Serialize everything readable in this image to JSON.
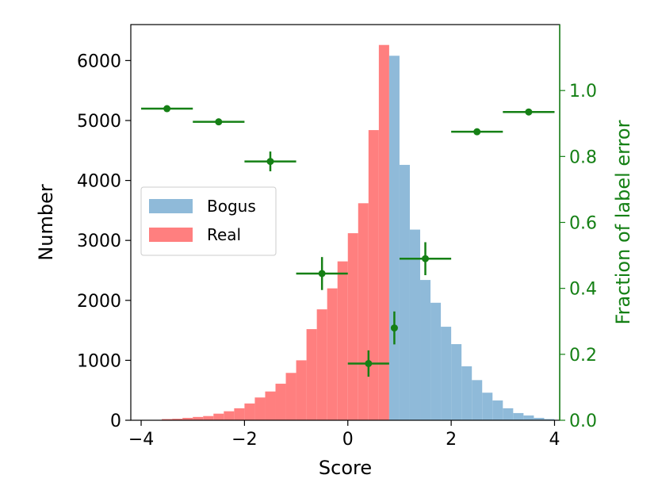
{
  "chart_data": {
    "type": "bar",
    "xlabel": "Score",
    "ylabel": "Number",
    "y2label": "Fraction of label error",
    "xlim": [
      -4.2,
      4.1
    ],
    "ylim": [
      0,
      6600
    ],
    "y2lim": [
      0,
      1.2
    ],
    "x_ticks": [
      "−4",
      "−2",
      "0",
      "2",
      "4"
    ],
    "x_tick_values": [
      -4,
      -2,
      0,
      2,
      4
    ],
    "y_ticks": [
      "0",
      "1000",
      "2000",
      "3000",
      "4000",
      "5000",
      "6000"
    ],
    "y_tick_values": [
      0,
      1000,
      2000,
      3000,
      4000,
      5000,
      6000
    ],
    "y2_ticks": [
      "0.0",
      "0.2",
      "0.4",
      "0.6",
      "0.8",
      "1.0"
    ],
    "y2_tick_values": [
      0.0,
      0.2,
      0.4,
      0.6,
      0.8,
      1.0
    ],
    "legend": {
      "placement": "center-left",
      "entries": [
        "Bogus",
        "Real"
      ]
    },
    "colors": {
      "bogus": "#8fbad9",
      "real": "#ff7f7f",
      "error": "#158015",
      "right_axis": "#158015"
    },
    "series": [
      {
        "name": "Bogus",
        "bin_width": 0.2,
        "bin_starts": [
          0.8,
          1.0,
          1.2,
          1.4,
          1.6,
          1.8,
          2.0,
          2.2,
          2.4,
          2.6,
          2.8,
          3.0,
          3.2,
          3.4,
          3.6,
          3.8
        ],
        "values": [
          6080,
          4260,
          3180,
          2340,
          1960,
          1560,
          1270,
          900,
          670,
          460,
          330,
          200,
          120,
          80,
          40,
          20
        ]
      },
      {
        "name": "Real",
        "bin_width": 0.2,
        "bin_starts": [
          -3.6,
          -3.4,
          -3.2,
          -3.0,
          -2.8,
          -2.6,
          -2.4,
          -2.2,
          -2.0,
          -1.8,
          -1.6,
          -1.4,
          -1.2,
          -1.0,
          -0.8,
          -0.6,
          -0.4,
          -0.2,
          0.0,
          0.2,
          0.4,
          0.6
        ],
        "values": [
          20,
          25,
          40,
          55,
          70,
          110,
          150,
          200,
          280,
          380,
          480,
          610,
          790,
          1000,
          1520,
          1850,
          2200,
          2650,
          3120,
          3620,
          4840,
          6260
        ]
      },
      {
        "name": "Fraction of label error",
        "axis": "right",
        "points": [
          {
            "x": -3.5,
            "xerr": 0.5,
            "y": 0.945,
            "yerr": 0.0
          },
          {
            "x": -2.5,
            "xerr": 0.5,
            "y": 0.905,
            "yerr": 0.0
          },
          {
            "x": -1.5,
            "xerr": 0.5,
            "y": 0.785,
            "yerr": 0.03
          },
          {
            "x": -0.5,
            "xerr": 0.5,
            "y": 0.445,
            "yerr": 0.05
          },
          {
            "x": 0.4,
            "xerr": 0.4,
            "y": 0.172,
            "yerr": 0.04
          },
          {
            "x": 0.9,
            "xerr": 0.0,
            "y": 0.28,
            "yerr": 0.05
          },
          {
            "x": 1.5,
            "xerr": 0.5,
            "y": 0.49,
            "yerr": 0.05
          },
          {
            "x": 2.5,
            "xerr": 0.5,
            "y": 0.875,
            "yerr": 0.0
          },
          {
            "x": 3.5,
            "xerr": 0.5,
            "y": 0.935,
            "yerr": 0.0
          }
        ]
      }
    ]
  }
}
